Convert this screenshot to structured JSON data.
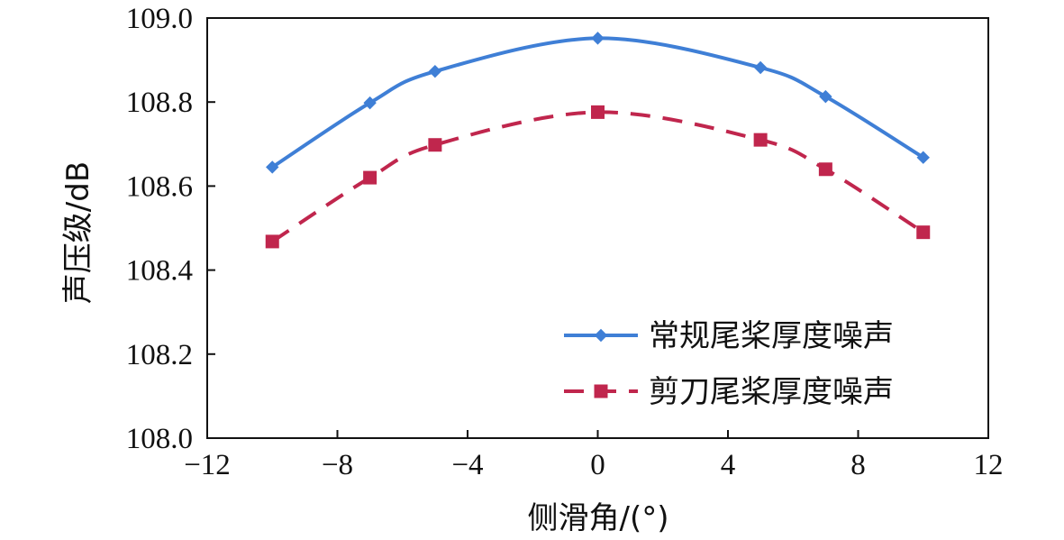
{
  "chart_data": {
    "type": "line",
    "title": "",
    "xlabel": "侧滑角/(°)",
    "ylabel": "声压级/dB",
    "xlim": [
      -12,
      12
    ],
    "ylim": [
      108.0,
      109.0
    ],
    "xticks": [
      "−12",
      "−8",
      "−4",
      "0",
      "4",
      "8",
      "12"
    ],
    "yticks": [
      "108.0",
      "108.2",
      "108.4",
      "108.6",
      "108.8",
      "109.0"
    ],
    "grid": false,
    "legend_position": "bottom-right",
    "series": [
      {
        "name": "常规尾桨厚度噪声",
        "color": "#3f7fd6",
        "line_style": "solid",
        "marker": "diamond",
        "x": [
          -10,
          -7,
          -5,
          0,
          5,
          7,
          10
        ],
        "y": [
          108.645,
          108.798,
          108.873,
          108.952,
          108.882,
          108.813,
          108.668
        ]
      },
      {
        "name": "剪刀尾桨厚度噪声",
        "color": "#c0264d",
        "line_style": "dashed",
        "marker": "square",
        "x": [
          -10,
          -7,
          -5,
          0,
          5,
          7,
          10
        ],
        "y": [
          108.468,
          108.62,
          108.698,
          108.776,
          108.71,
          108.64,
          108.49
        ]
      }
    ]
  }
}
